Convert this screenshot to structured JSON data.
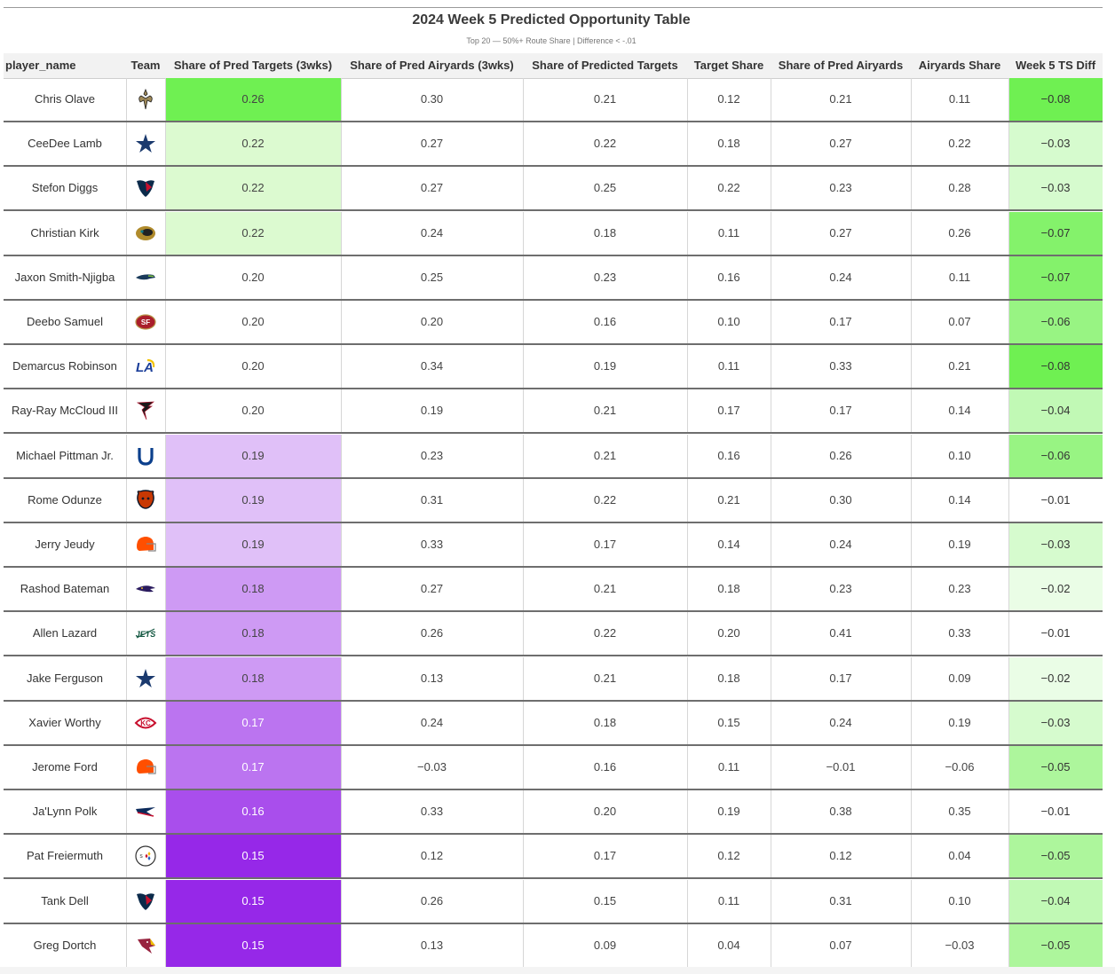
{
  "chart_data": {
    "type": "table",
    "title": "2024 Week 5 Predicted Opportunity Table",
    "subtitle": "Top 20 — 50%+ Route Share | Difference < -.01",
    "columns": [
      "player_name",
      "Team",
      "Share of Pred Targets (3wks)",
      "Share of Pred Airyards (3wks)",
      "Share of Predicted Targets",
      "Target Share",
      "Share of Pred Airyards",
      "Airyards Share",
      "Week 5 TS Diff"
    ],
    "rows": [
      {
        "player_name": "Chris Olave",
        "team_icon": "saints-logo-icon",
        "pred_targets_3wks": "0.26",
        "pred_airyards_3wks": "0.30",
        "pred_targets": "0.21",
        "target_share": "0.12",
        "pred_airyards": "0.21",
        "airyards_share": "0.11",
        "ts_diff": "−0.08"
      },
      {
        "player_name": "CeeDee Lamb",
        "team_icon": "cowboys-logo-icon",
        "pred_targets_3wks": "0.22",
        "pred_airyards_3wks": "0.27",
        "pred_targets": "0.22",
        "target_share": "0.18",
        "pred_airyards": "0.27",
        "airyards_share": "0.22",
        "ts_diff": "−0.03"
      },
      {
        "player_name": "Stefon Diggs",
        "team_icon": "texans-logo-icon",
        "pred_targets_3wks": "0.22",
        "pred_airyards_3wks": "0.27",
        "pred_targets": "0.25",
        "target_share": "0.22",
        "pred_airyards": "0.23",
        "airyards_share": "0.28",
        "ts_diff": "−0.03"
      },
      {
        "player_name": "Christian Kirk",
        "team_icon": "jaguars-logo-icon",
        "pred_targets_3wks": "0.22",
        "pred_airyards_3wks": "0.24",
        "pred_targets": "0.18",
        "target_share": "0.11",
        "pred_airyards": "0.27",
        "airyards_share": "0.26",
        "ts_diff": "−0.07"
      },
      {
        "player_name": "Jaxon Smith-Njigba",
        "team_icon": "seahawks-logo-icon",
        "pred_targets_3wks": "0.20",
        "pred_airyards_3wks": "0.25",
        "pred_targets": "0.23",
        "target_share": "0.16",
        "pred_airyards": "0.24",
        "airyards_share": "0.11",
        "ts_diff": "−0.07"
      },
      {
        "player_name": "Deebo Samuel",
        "team_icon": "49ers-logo-icon",
        "pred_targets_3wks": "0.20",
        "pred_airyards_3wks": "0.20",
        "pred_targets": "0.16",
        "target_share": "0.10",
        "pred_airyards": "0.17",
        "airyards_share": "0.07",
        "ts_diff": "−0.06"
      },
      {
        "player_name": "Demarcus Robinson",
        "team_icon": "rams-logo-icon",
        "pred_targets_3wks": "0.20",
        "pred_airyards_3wks": "0.34",
        "pred_targets": "0.19",
        "target_share": "0.11",
        "pred_airyards": "0.33",
        "airyards_share": "0.21",
        "ts_diff": "−0.08"
      },
      {
        "player_name": "Ray-Ray McCloud III",
        "team_icon": "falcons-logo-icon",
        "pred_targets_3wks": "0.20",
        "pred_airyards_3wks": "0.19",
        "pred_targets": "0.21",
        "target_share": "0.17",
        "pred_airyards": "0.17",
        "airyards_share": "0.14",
        "ts_diff": "−0.04"
      },
      {
        "player_name": "Michael Pittman Jr.",
        "team_icon": "colts-logo-icon",
        "pred_targets_3wks": "0.19",
        "pred_airyards_3wks": "0.23",
        "pred_targets": "0.21",
        "target_share": "0.16",
        "pred_airyards": "0.26",
        "airyards_share": "0.10",
        "ts_diff": "−0.06"
      },
      {
        "player_name": "Rome Odunze",
        "team_icon": "bears-logo-icon",
        "pred_targets_3wks": "0.19",
        "pred_airyards_3wks": "0.31",
        "pred_targets": "0.22",
        "target_share": "0.21",
        "pred_airyards": "0.30",
        "airyards_share": "0.14",
        "ts_diff": "−0.01"
      },
      {
        "player_name": "Jerry Jeudy",
        "team_icon": "browns-logo-icon",
        "pred_targets_3wks": "0.19",
        "pred_airyards_3wks": "0.33",
        "pred_targets": "0.17",
        "target_share": "0.14",
        "pred_airyards": "0.24",
        "airyards_share": "0.19",
        "ts_diff": "−0.03"
      },
      {
        "player_name": "Rashod Bateman",
        "team_icon": "ravens-logo-icon",
        "pred_targets_3wks": "0.18",
        "pred_airyards_3wks": "0.27",
        "pred_targets": "0.21",
        "target_share": "0.18",
        "pred_airyards": "0.23",
        "airyards_share": "0.23",
        "ts_diff": "−0.02"
      },
      {
        "player_name": "Allen Lazard",
        "team_icon": "jets-logo-icon",
        "pred_targets_3wks": "0.18",
        "pred_airyards_3wks": "0.26",
        "pred_targets": "0.22",
        "target_share": "0.20",
        "pred_airyards": "0.41",
        "airyards_share": "0.33",
        "ts_diff": "−0.01"
      },
      {
        "player_name": "Jake Ferguson",
        "team_icon": "cowboys-logo-icon",
        "pred_targets_3wks": "0.18",
        "pred_airyards_3wks": "0.13",
        "pred_targets": "0.21",
        "target_share": "0.18",
        "pred_airyards": "0.17",
        "airyards_share": "0.09",
        "ts_diff": "−0.02"
      },
      {
        "player_name": "Xavier Worthy",
        "team_icon": "chiefs-logo-icon",
        "pred_targets_3wks": "0.17",
        "pred_airyards_3wks": "0.24",
        "pred_targets": "0.18",
        "target_share": "0.15",
        "pred_airyards": "0.24",
        "airyards_share": "0.19",
        "ts_diff": "−0.03"
      },
      {
        "player_name": "Jerome Ford",
        "team_icon": "browns-logo-icon",
        "pred_targets_3wks": "0.17",
        "pred_airyards_3wks": "−0.03",
        "pred_targets": "0.16",
        "target_share": "0.11",
        "pred_airyards": "−0.01",
        "airyards_share": "−0.06",
        "ts_diff": "−0.05"
      },
      {
        "player_name": "Ja'Lynn Polk",
        "team_icon": "patriots-logo-icon",
        "pred_targets_3wks": "0.16",
        "pred_airyards_3wks": "0.33",
        "pred_targets": "0.20",
        "target_share": "0.19",
        "pred_airyards": "0.38",
        "airyards_share": "0.35",
        "ts_diff": "−0.01"
      },
      {
        "player_name": "Pat Freiermuth",
        "team_icon": "steelers-logo-icon",
        "pred_targets_3wks": "0.15",
        "pred_airyards_3wks": "0.12",
        "pred_targets": "0.17",
        "target_share": "0.12",
        "pred_airyards": "0.12",
        "airyards_share": "0.04",
        "ts_diff": "−0.05"
      },
      {
        "player_name": "Tank Dell",
        "team_icon": "texans-logo-icon",
        "pred_targets_3wks": "0.15",
        "pred_airyards_3wks": "0.26",
        "pred_targets": "0.15",
        "target_share": "0.11",
        "pred_airyards": "0.31",
        "airyards_share": "0.10",
        "ts_diff": "−0.04"
      },
      {
        "player_name": "Greg Dortch",
        "team_icon": "cardinals-logo-icon",
        "pred_targets_3wks": "0.15",
        "pred_airyards_3wks": "0.13",
        "pred_targets": "0.09",
        "target_share": "0.04",
        "pred_airyards": "0.07",
        "airyards_share": "−0.03",
        "ts_diff": "−0.05"
      }
    ],
    "color_scales": {
      "pred_targets_3wks_high": "#6ff052",
      "pred_targets_3wks_low": "#9b2ee8",
      "ts_diff_strong": "#6ff052",
      "ts_diff_weak": "#ffffff"
    }
  }
}
